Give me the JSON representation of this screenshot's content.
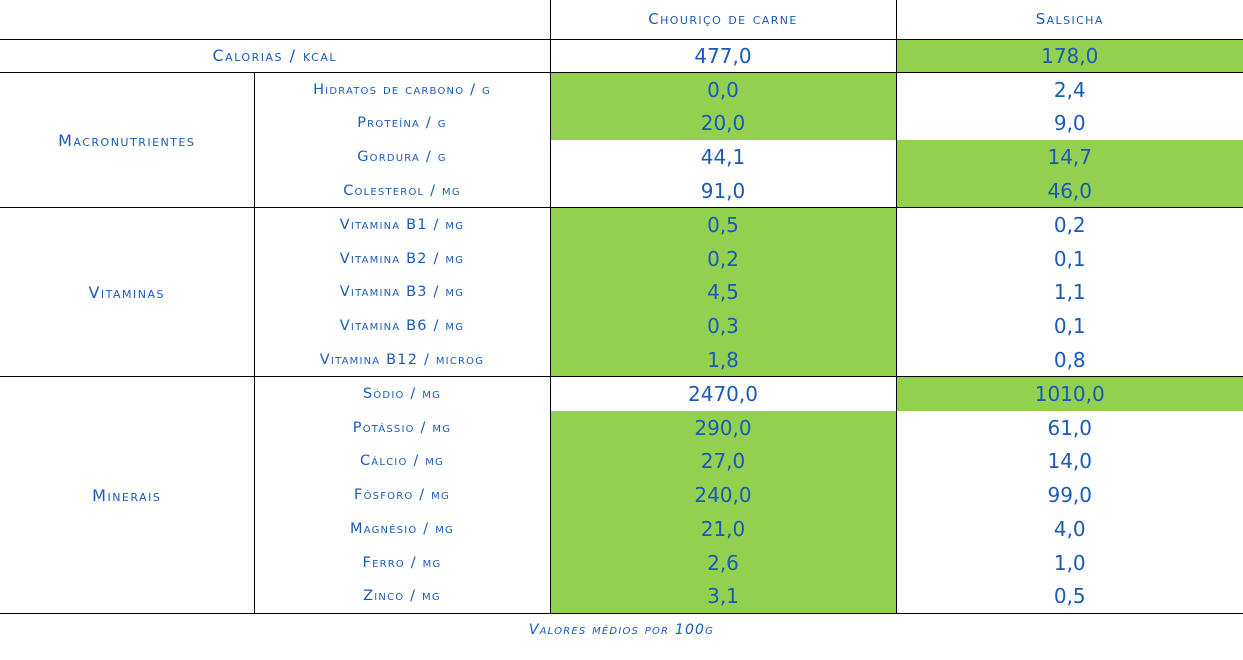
{
  "header": {
    "col1": "Chouriço de carne",
    "col2": "Salsicha"
  },
  "calorias": {
    "label": "Calorias / kcal",
    "v1": "477,0",
    "v2": "178,0"
  },
  "groups": {
    "macro": "Macronutrientes",
    "vit": "Vitaminas",
    "min": "Minerais"
  },
  "rows": [
    {
      "label": "Hidratos de carbono / g",
      "v1": "0,0",
      "v2": "2,4"
    },
    {
      "label": "Proteína / g",
      "v1": "20,0",
      "v2": "9,0"
    },
    {
      "label": "Gordura / g",
      "v1": "44,1",
      "v2": "14,7"
    },
    {
      "label": "Colesterol / mg",
      "v1": "91,0",
      "v2": "46,0"
    },
    {
      "label": "Vitamina B1 / mg",
      "v1": "0,5",
      "v2": "0,2"
    },
    {
      "label": "Vitamina B2 / mg",
      "v1": "0,2",
      "v2": "0,1"
    },
    {
      "label": "Vitamina B3 / mg",
      "v1": "4,5",
      "v2": "1,1"
    },
    {
      "label": "Vitamina B6 / mg",
      "v1": "0,3",
      "v2": "0,1"
    },
    {
      "label": "Vitamina B12 / microg",
      "v1": "1,8",
      "v2": "0,8"
    },
    {
      "label": "Sódio / mg",
      "v1": "2470,0",
      "v2": "1010,0"
    },
    {
      "label": "Potássio / mg",
      "v1": "290,0",
      "v2": "61,0"
    },
    {
      "label": "Cálcio / mg",
      "v1": "27,0",
      "v2": "14,0"
    },
    {
      "label": "Fósforo / mg",
      "v1": "240,0",
      "v2": "99,0"
    },
    {
      "label": "Magnésio / mg",
      "v1": "21,0",
      "v2": "4,0"
    },
    {
      "label": "Ferro / mg",
      "v1": "2,6",
      "v2": "1,0"
    },
    {
      "label": "Zinco / mg",
      "v1": "3,1",
      "v2": "0,5"
    }
  ],
  "footnote": "Valores médios por 100g",
  "highlight_color": "#92d050",
  "text_color": "#1a5bb8"
}
